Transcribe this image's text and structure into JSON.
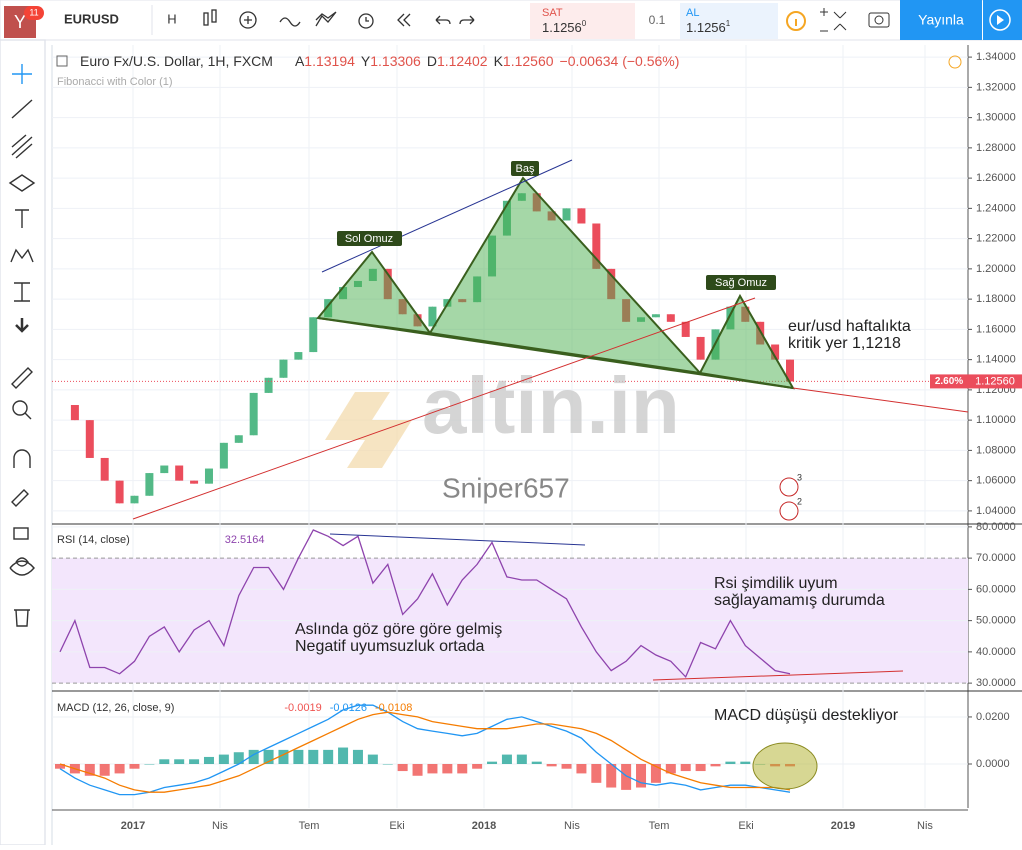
{
  "toolbar": {
    "avatar_badge": "11",
    "symbol": "EURUSD",
    "interval": "H",
    "sell_label": "SAT",
    "sell_price": "1.1256",
    "sell_sup": "0",
    "spread": "0.1",
    "buy_label": "AL",
    "buy_price": "1.1256",
    "buy_sup": "1",
    "publish": "Yayınla"
  },
  "legend": {
    "title": "Euro Fx/U.S. Dollar, 1H, FXCM",
    "open_label": "A",
    "open": "1.13194",
    "high_label": "Y",
    "high": "1.13306",
    "low_label": "D",
    "low": "1.12402",
    "close_label": "K",
    "close": "1.12560",
    "change": "−0.00634 (−0.56%)",
    "study": "Fibonacci with Color (1)"
  },
  "time_axis": [
    "2017",
    "Nis",
    "Tem",
    "Eki",
    "2018",
    "Nis",
    "Tem",
    "Eki",
    "2019",
    "Nis"
  ],
  "chart_data": [
    {
      "type": "candlestick",
      "values": [
        1.11,
        1.1,
        1.075,
        1.06,
        1.045,
        1.05,
        1.065,
        1.07,
        1.06,
        1.058,
        1.068,
        1.085,
        1.09,
        1.118,
        1.128,
        1.14,
        1.145,
        1.168,
        1.18,
        1.188,
        1.192,
        1.2,
        1.18,
        1.17,
        1.162,
        1.175,
        1.18,
        1.178,
        1.195,
        1.222,
        1.245,
        1.25,
        1.238,
        1.232,
        1.24,
        1.23,
        1.2,
        1.18,
        1.165,
        1.168,
        1.17,
        1.165,
        1.155,
        1.14,
        1.16,
        1.175,
        1.165,
        1.15,
        1.14,
        1.1256
      ],
      "ylim": [
        1.032,
        1.348
      ],
      "yticks": [
        {
          "value": 1.34,
          "label": "1.34000"
        },
        {
          "value": 1.32,
          "label": "1.32000"
        },
        {
          "value": 1.3,
          "label": "1.30000"
        },
        {
          "value": 1.28,
          "label": "1.28000"
        },
        {
          "value": 1.26,
          "label": "1.26000"
        },
        {
          "value": 1.24,
          "label": "1.24000"
        },
        {
          "value": 1.22,
          "label": "1.22000"
        },
        {
          "value": 1.2,
          "label": "1.20000"
        },
        {
          "value": 1.18,
          "label": "1.18000"
        },
        {
          "value": 1.16,
          "label": "1.16000"
        },
        {
          "value": 1.14,
          "label": "1.14000"
        },
        {
          "value": 1.12,
          "label": "1.12000"
        },
        {
          "value": 1.1,
          "label": "1.10000"
        },
        {
          "value": 1.08,
          "label": "1.08000"
        },
        {
          "value": 1.06,
          "label": "1.06000"
        },
        {
          "value": 1.04,
          "label": "1.04000"
        }
      ],
      "up_color": "#53b987",
      "down_color": "#eb4d5c",
      "grid": true,
      "last_change": "2.60%",
      "last_label": "1.12560",
      "annotations": [
        "Sol Omuz",
        "Baş",
        "Sağ Omuz",
        "eur/usd haftalıkta",
        "kritik yer 1,1218"
      ],
      "watermark": "altin.in",
      "author": "Sniper657",
      "event_badges": [
        "3",
        "2"
      ]
    },
    {
      "type": "line",
      "title": "RSI (14, close)",
      "readout": "32.5164",
      "color": "#8e44ad",
      "values": [
        40,
        50,
        35,
        35,
        33,
        37,
        45,
        48,
        40,
        47,
        50,
        42,
        58,
        67,
        67,
        60,
        70,
        79,
        77,
        74,
        77,
        62,
        68,
        52,
        57,
        65,
        55,
        63,
        68,
        75,
        64,
        63,
        63,
        60,
        57,
        48,
        40,
        34,
        37,
        42,
        39,
        37,
        32,
        43,
        41,
        50,
        42,
        38,
        34,
        33
      ],
      "ylim": [
        27.8,
        80.6
      ],
      "yticks": [
        {
          "value": 80,
          "label": "80.0000"
        },
        {
          "value": 70,
          "label": "70.0000"
        },
        {
          "value": 60,
          "label": "60.0000"
        },
        {
          "value": 50,
          "label": "50.0000"
        },
        {
          "value": 40,
          "label": "40.0000"
        },
        {
          "value": 30,
          "label": "30.0000"
        }
      ],
      "band": [
        30,
        70
      ],
      "band_color": "#f3e6fc",
      "annotations": [
        "Aslında göz göre göre gelmiş",
        "Negatif uyumsuzluk ortada",
        "Rsi şimdilik uyum",
        "sağlayamamış durumda"
      ]
    },
    {
      "type": "macd",
      "title": "MACD (12, 26, close, 9)",
      "readout": [
        "-0.0019",
        "-0.0126",
        "-0.0108"
      ],
      "macd": [
        -0.002,
        -0.006,
        -0.009,
        -0.011,
        -0.013,
        -0.013,
        -0.012,
        -0.01,
        -0.009,
        -0.008,
        -0.006,
        -0.003,
        0.0,
        0.004,
        0.007,
        0.01,
        0.013,
        0.016,
        0.019,
        0.023,
        0.025,
        0.025,
        0.022,
        0.018,
        0.015,
        0.014,
        0.013,
        0.012,
        0.013,
        0.016,
        0.019,
        0.02,
        0.018,
        0.016,
        0.014,
        0.011,
        0.005,
        0.0,
        -0.005,
        -0.008,
        -0.009,
        -0.008,
        -0.009,
        -0.011,
        -0.01,
        -0.009,
        -0.009,
        -0.01,
        -0.011,
        -0.012
      ],
      "signal": [
        0.0,
        -0.002,
        -0.004,
        -0.006,
        -0.009,
        -0.011,
        -0.012,
        -0.012,
        -0.011,
        -0.01,
        -0.009,
        -0.007,
        -0.005,
        -0.002,
        0.001,
        0.004,
        0.007,
        0.01,
        0.013,
        0.016,
        0.019,
        0.021,
        0.022,
        0.021,
        0.02,
        0.018,
        0.017,
        0.016,
        0.015,
        0.015,
        0.015,
        0.016,
        0.017,
        0.017,
        0.016,
        0.015,
        0.013,
        0.01,
        0.006,
        0.002,
        -0.001,
        -0.004,
        -0.006,
        -0.008,
        -0.009,
        -0.01,
        -0.01,
        -0.01,
        -0.01,
        -0.011
      ],
      "histogram": [
        -0.002,
        -0.004,
        -0.005,
        -0.005,
        -0.004,
        -0.002,
        0.0,
        0.002,
        0.002,
        0.002,
        0.003,
        0.004,
        0.005,
        0.006,
        0.006,
        0.006,
        0.006,
        0.006,
        0.006,
        0.007,
        0.006,
        0.004,
        0.0,
        -0.003,
        -0.005,
        -0.004,
        -0.004,
        -0.004,
        -0.002,
        0.001,
        0.004,
        0.004,
        0.001,
        -0.001,
        -0.002,
        -0.004,
        -0.008,
        -0.01,
        -0.011,
        -0.01,
        -0.008,
        -0.004,
        -0.003,
        -0.003,
        -0.001,
        0.001,
        0.001,
        0.0,
        -0.001,
        -0.001
      ],
      "macd_color": "#2196f3",
      "signal_color": "#f57c00",
      "pos_color": "#26a69a",
      "neg_color": "#ef5350",
      "ylim": [
        -0.0187,
        0.0306
      ],
      "yticks": [
        {
          "value": 0.02,
          "label": "0.0200"
        },
        {
          "value": 0,
          "label": "0.0000"
        }
      ],
      "annotations": [
        "MACD düşüşü destekliyor"
      ]
    }
  ]
}
